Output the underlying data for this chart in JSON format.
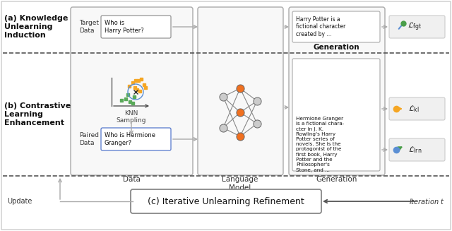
{
  "bg_color": "#ffffff",
  "title_a": "(a) Knowledge\nUnlearning\nInduction",
  "title_b": "(b) Contrastive\nLearning\nEnhancement",
  "title_c": "(c) Iterative Unlearning Refinement",
  "label_data": "Data",
  "label_lm": "Language\nModel",
  "label_gen": "Generation",
  "label_update": "Update",
  "label_iter": "Iteration $t$",
  "label_knn": "KNN\nSampling",
  "target_data_label": "Target\nData",
  "paired_data_label": "Paired\nData",
  "box_target_text": "Who is\nHarry Potter?",
  "box_paired_text": "Who is Hermione\nGranger?",
  "box_gen_top_text": "Harry Potter is a\nfictional character\ncreated by ...",
  "box_gen_bot_text": "Hermione Granger\nis a fictional chara-\ncter in J. K.\nRowling's Harry\nPotter series of\nnovels. She is the\nprotagonist of the\nfirst book, Harry\nPotter and the\nPhilosopher's\nStone, and ...",
  "loss_fgt": "$\\mathcal{L}_{\\mathrm{fgt}}$",
  "loss_kl": "$\\mathcal{L}_{\\mathrm{kl}}$",
  "loss_lrn": "$\\mathcal{L}_{\\mathrm{lrn}}$",
  "color_green": "#4a9e4a",
  "color_orange": "#f5a623",
  "color_blue": "#5b8fd4",
  "color_nn_orange": "#f07020",
  "color_scatter_orange": "#f5a623",
  "color_scatter_green": "#5aaa5a",
  "color_gray_arrow": "#aaaaaa",
  "color_border": "#999999",
  "color_box_bg": "#f8f8f8",
  "color_loss_bg": "#f0f0f0"
}
